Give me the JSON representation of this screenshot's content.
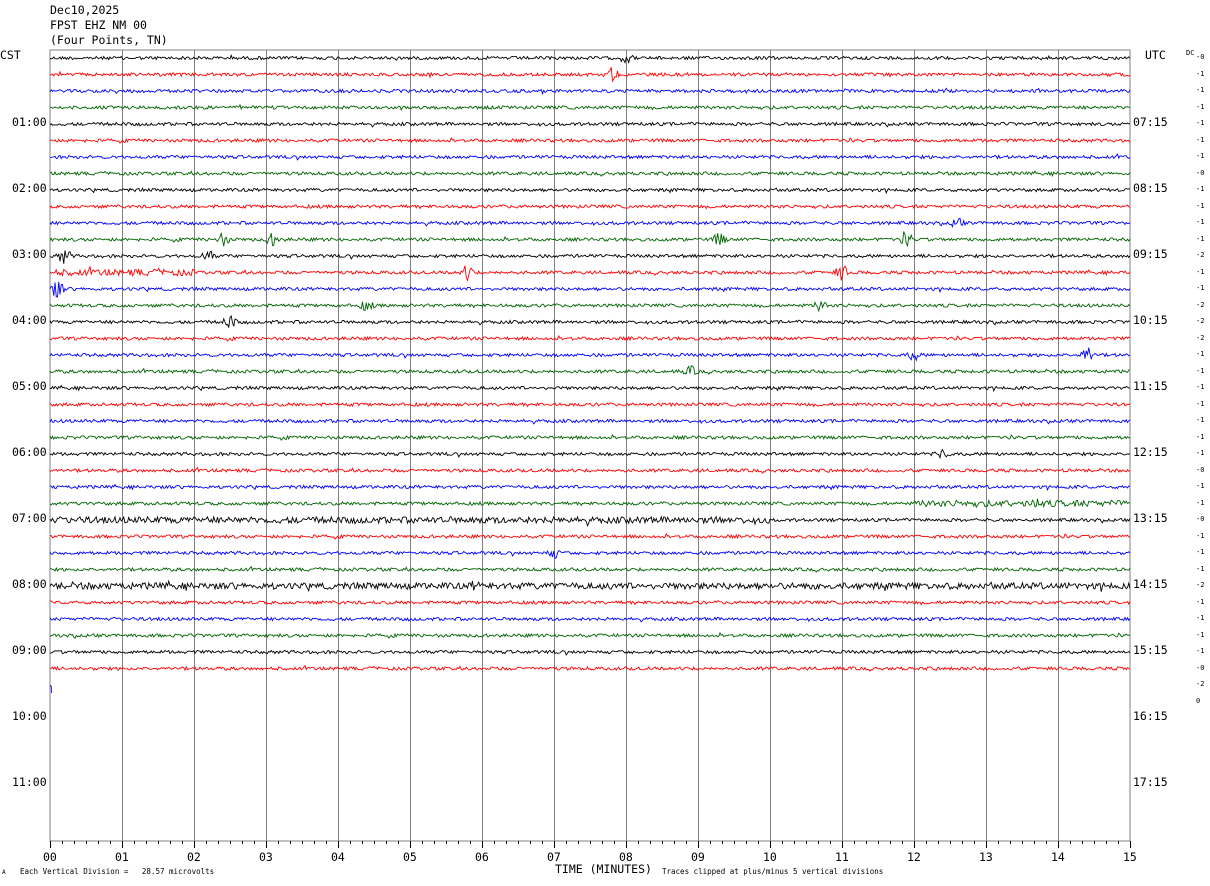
{
  "header": {
    "date": "Dec10,2025",
    "station": "FPST EHZ NM 00",
    "location": "(Four Points, TN)"
  },
  "left_axis_label": "CST",
  "right_axis_label": "UTC",
  "dc_header": "DC",
  "left_times": [
    "01:00",
    "02:00",
    "03:00",
    "04:00",
    "05:00",
    "06:00",
    "07:00",
    "08:00",
    "09:00",
    "10:00",
    "11:00"
  ],
  "right_times": [
    "07:15",
    "08:15",
    "09:15",
    "10:15",
    "11:15",
    "12:15",
    "13:15",
    "14:15",
    "15:15",
    "16:15",
    "17:15"
  ],
  "dc_offsets": [
    "-0",
    "-1",
    "-1",
    "-1",
    "-1",
    "-1",
    "-1",
    "-0",
    "-1",
    "-1",
    "-1",
    "-1",
    "-2",
    "-1",
    "-1",
    "-2",
    "-2",
    "-2",
    "-1",
    "-1",
    "-1",
    "-1",
    "-1",
    "-1",
    "-1",
    "-0",
    "-1",
    "-1",
    "-0",
    "-1",
    "-1",
    "-1",
    "-2",
    "-1",
    "-1",
    "-1",
    "-1",
    "-0",
    "-2",
    "0"
  ],
  "footer": {
    "xlabel": "TIME (MINUTES)",
    "scale_note": "Each Vertical Division =   28.57 microvolts",
    "clip_note": "Traces clipped at plus/minus 5 vertical divisions",
    "corner_mark": "A"
  },
  "colors": {
    "black": "#000000",
    "red": "#ff0000",
    "blue": "#0000ff",
    "green": "#006400",
    "grid": "#808080"
  },
  "chart_data": {
    "type": "line",
    "title": "FPST EHZ NM 00",
    "xlabel": "TIME (MINUTES)",
    "x_ticks": [
      "00",
      "01",
      "02",
      "03",
      "04",
      "05",
      "06",
      "07",
      "08",
      "09",
      "10",
      "11",
      "12",
      "13",
      "14",
      "15"
    ],
    "xlim": [
      0,
      15
    ],
    "trace_minutes": 15,
    "trace_colors_cycle": [
      "black",
      "red",
      "blue",
      "green"
    ],
    "num_traces": 39,
    "last_trace_end_minute": 0.02,
    "events": [
      {
        "trace": 0,
        "minute": 8.0,
        "amp": 3
      },
      {
        "trace": 1,
        "minute": 7.8,
        "amp": 4
      },
      {
        "trace": 10,
        "minute": 12.6,
        "amp": 3
      },
      {
        "trace": 11,
        "minute": 2.4,
        "amp": 4
      },
      {
        "trace": 11,
        "minute": 3.1,
        "amp": 4
      },
      {
        "trace": 11,
        "minute": 9.3,
        "amp": 4
      },
      {
        "trace": 11,
        "minute": 11.9,
        "amp": 4
      },
      {
        "trace": 12,
        "minute": 0.2,
        "amp": 5
      },
      {
        "trace": 12,
        "minute": 2.2,
        "amp": 3
      },
      {
        "trace": 13,
        "minute": 5.8,
        "amp": 5
      },
      {
        "trace": 13,
        "minute": 11.0,
        "amp": 5
      },
      {
        "trace": 14,
        "minute": 0.1,
        "amp": 6
      },
      {
        "trace": 15,
        "minute": 4.4,
        "amp": 3
      },
      {
        "trace": 15,
        "minute": 10.7,
        "amp": 3
      },
      {
        "trace": 16,
        "minute": 2.5,
        "amp": 4
      },
      {
        "trace": 18,
        "minute": 12.0,
        "amp": 3
      },
      {
        "trace": 18,
        "minute": 14.4,
        "amp": 6
      },
      {
        "trace": 19,
        "minute": 8.9,
        "amp": 3
      },
      {
        "trace": 24,
        "minute": 12.4,
        "amp": 3
      },
      {
        "trace": 27,
        "minute": 13.7,
        "amp": 3
      },
      {
        "trace": 30,
        "minute": 7.0,
        "amp": 3
      },
      {
        "trace": 32,
        "minute": 5.9,
        "amp": 3
      }
    ],
    "noisy_segments": [
      {
        "trace": 13,
        "from": 0,
        "to": 2
      },
      {
        "trace": 27,
        "from": 12,
        "to": 15
      },
      {
        "trace": 28,
        "from": 0,
        "to": 10
      },
      {
        "trace": 32,
        "from": 0,
        "to": 15
      }
    ]
  }
}
